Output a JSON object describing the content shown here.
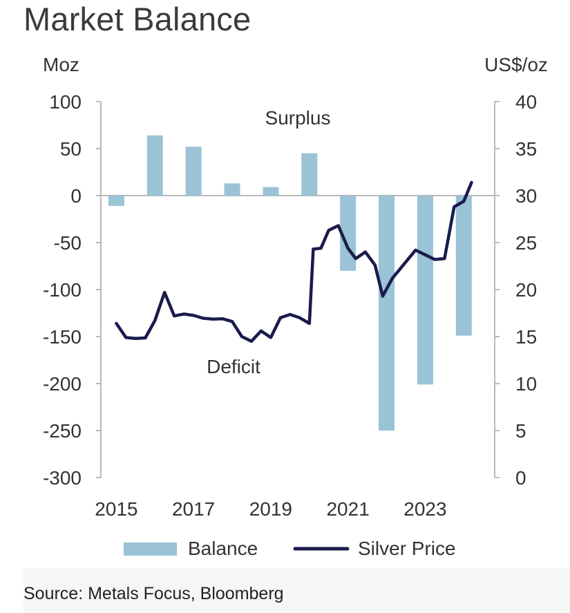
{
  "title": "Market Balance",
  "source": "Source: Metals Focus, Bloomberg",
  "chart_data": {
    "type": "bar+line",
    "left_axis": {
      "unit": "Moz",
      "range": [
        -300,
        100
      ],
      "ticks": [
        100,
        50,
        0,
        -50,
        -100,
        -150,
        -200,
        -250,
        -300
      ]
    },
    "right_axis": {
      "unit": "US$/oz",
      "range": [
        0,
        40
      ],
      "ticks": [
        40,
        35,
        30,
        25,
        20,
        15,
        10,
        5,
        0
      ]
    },
    "x_tick_labels": [
      "2015",
      "2017",
      "2019",
      "2021",
      "2023"
    ],
    "x_range": [
      2014.6,
      2024.8
    ],
    "annotations": {
      "surplus": "Surplus",
      "deficit": "Deficit"
    },
    "legend": {
      "balance": "Balance",
      "silver_price": "Silver Price"
    },
    "series": [
      {
        "name": "Balance",
        "kind": "bar",
        "axis": "left",
        "color": "#9ac3d6",
        "categories": [
          "2015",
          "2016",
          "2017",
          "2018",
          "2019",
          "2020",
          "2021",
          "2022",
          "2023",
          "2024"
        ],
        "x": [
          2015,
          2016,
          2017,
          2018,
          2019,
          2020,
          2021,
          2022,
          2023,
          2024
        ],
        "values": [
          -11,
          64,
          52,
          13,
          9,
          45,
          -80,
          -250,
          -201,
          -149
        ]
      },
      {
        "name": "Silver Price",
        "kind": "line",
        "axis": "right",
        "color": "#1a1b4b",
        "points": [
          [
            2015.0,
            16.4
          ],
          [
            2015.25,
            14.9
          ],
          [
            2015.5,
            14.8
          ],
          [
            2015.75,
            14.85
          ],
          [
            2016.0,
            16.7
          ],
          [
            2016.25,
            19.7
          ],
          [
            2016.5,
            17.2
          ],
          [
            2016.75,
            17.4
          ],
          [
            2017.0,
            17.25
          ],
          [
            2017.25,
            16.95
          ],
          [
            2017.5,
            16.85
          ],
          [
            2017.75,
            16.9
          ],
          [
            2018.0,
            16.6
          ],
          [
            2018.25,
            15.0
          ],
          [
            2018.5,
            14.5
          ],
          [
            2018.75,
            15.6
          ],
          [
            2019.0,
            14.9
          ],
          [
            2019.25,
            17.0
          ],
          [
            2019.5,
            17.35
          ],
          [
            2019.75,
            17.0
          ],
          [
            2020.0,
            16.4
          ],
          [
            2020.1,
            24.3
          ],
          [
            2020.3,
            24.4
          ],
          [
            2020.5,
            26.3
          ],
          [
            2020.75,
            26.8
          ],
          [
            2021.0,
            24.4
          ],
          [
            2021.2,
            23.3
          ],
          [
            2021.45,
            24.0
          ],
          [
            2021.7,
            22.6
          ],
          [
            2021.9,
            19.3
          ],
          [
            2022.15,
            21.2
          ],
          [
            2022.45,
            22.7
          ],
          [
            2022.75,
            24.2
          ],
          [
            2023.0,
            23.7
          ],
          [
            2023.25,
            23.2
          ],
          [
            2023.5,
            23.3
          ],
          [
            2023.75,
            28.8
          ],
          [
            2024.0,
            29.4
          ],
          [
            2024.2,
            31.4
          ]
        ]
      }
    ]
  }
}
